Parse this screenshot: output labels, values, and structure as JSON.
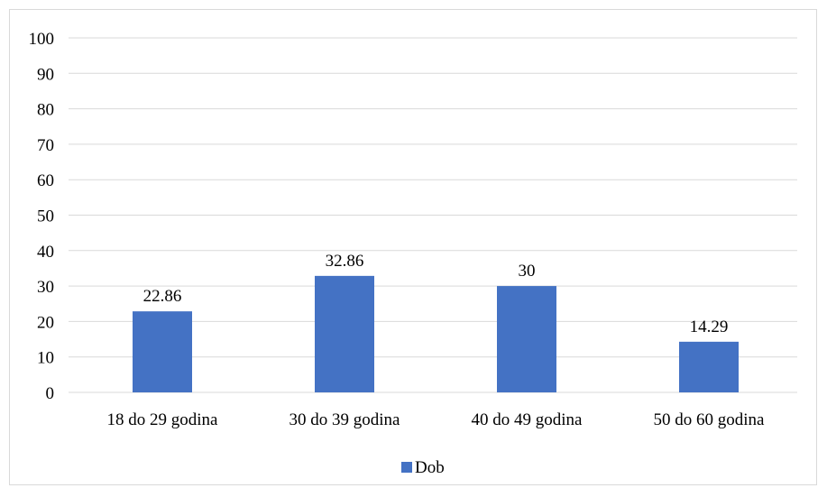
{
  "chart_data": {
    "type": "bar",
    "categories": [
      "18 do 29 godina",
      "30 do 39 godina",
      "40 do 49 godina",
      "50 do 60 godina"
    ],
    "series": [
      {
        "name": "Dob",
        "values": [
          22.86,
          32.86,
          30,
          14.29
        ],
        "value_labels": [
          "22.86",
          "32.86",
          "30",
          "14.29"
        ],
        "color": "#4472c4"
      }
    ],
    "title": "",
    "xlabel": "",
    "ylabel": "",
    "ylim": [
      0,
      100
    ],
    "yticks": [
      0,
      10,
      20,
      30,
      40,
      50,
      60,
      70,
      80,
      90,
      100
    ],
    "ytick_labels": [
      "0",
      "10",
      "20",
      "30",
      "40",
      "50",
      "60",
      "70",
      "80",
      "90",
      "100"
    ],
    "grid": true,
    "legend_position": "bottom"
  }
}
